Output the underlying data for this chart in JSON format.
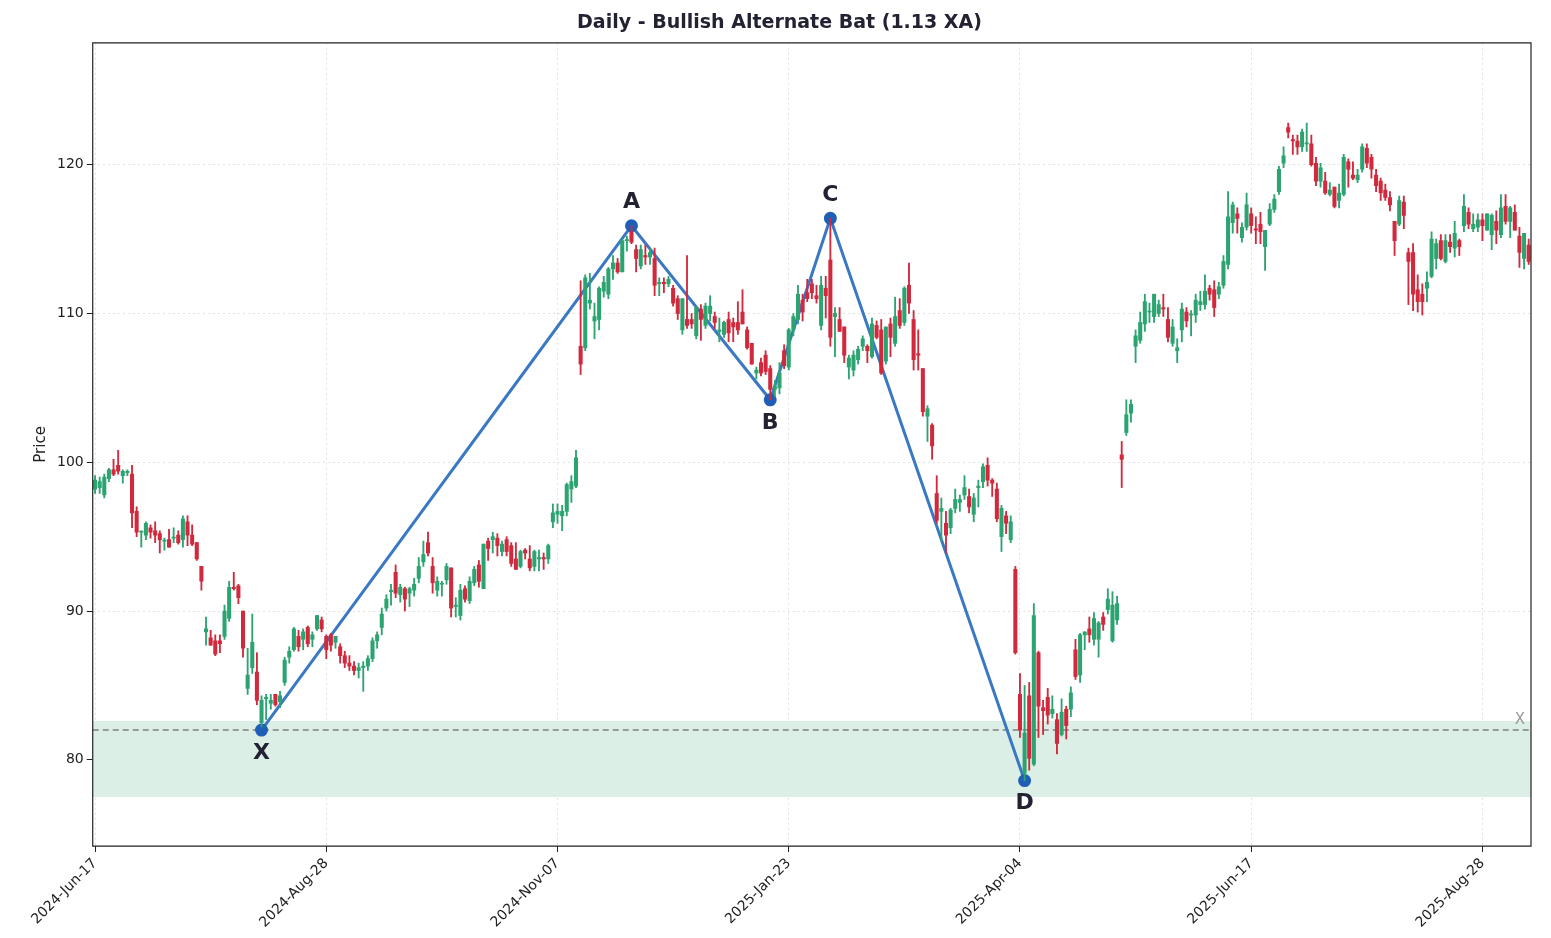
{
  "chart_data": {
    "type": "candlestick",
    "title": "Daily - Bullish Alternate Bat (1.13 XA)",
    "ylabel": "Price",
    "ylim": [
      74.2,
      128.2
    ],
    "yticks": [
      80,
      90,
      100,
      110,
      120
    ],
    "grid": true,
    "legend": false,
    "marker": "circle",
    "line_style": "solid",
    "categories": [
      "2024-Jun-17",
      null,
      null,
      null,
      null,
      null,
      null,
      null,
      null,
      null,
      null,
      null,
      null,
      null,
      null,
      null,
      null,
      null,
      null,
      null,
      null,
      null,
      null,
      null,
      null,
      null,
      null,
      null,
      null,
      null,
      null,
      null,
      null,
      null,
      null,
      null,
      null,
      null,
      null,
      null,
      null,
      null,
      null,
      null,
      null,
      null,
      null,
      null,
      null,
      null,
      "2024-Aug-28",
      null,
      null,
      null,
      null,
      null,
      null,
      null,
      null,
      null,
      null,
      null,
      null,
      null,
      null,
      null,
      null,
      null,
      null,
      null,
      null,
      null,
      null,
      null,
      null,
      null,
      null,
      null,
      null,
      null,
      null,
      null,
      null,
      null,
      null,
      null,
      null,
      null,
      null,
      null,
      null,
      null,
      null,
      null,
      null,
      null,
      null,
      null,
      null,
      null,
      "2024-Nov-07",
      null,
      null,
      null,
      null,
      null,
      null,
      null,
      null,
      null,
      null,
      null,
      null,
      null,
      null,
      null,
      null,
      null,
      null,
      null,
      null,
      null,
      null,
      null,
      null,
      null,
      null,
      null,
      null,
      null,
      null,
      null,
      null,
      null,
      null,
      null,
      null,
      null,
      null,
      null,
      null,
      null,
      null,
      null,
      null,
      null,
      null,
      null,
      null,
      null,
      "2025-Jan-23",
      null,
      null,
      null,
      null,
      null,
      null,
      null,
      null,
      null,
      null,
      null,
      null,
      null,
      null,
      null,
      null,
      null,
      null,
      null,
      null,
      null,
      null,
      null,
      null,
      null,
      null,
      null,
      null,
      null,
      null,
      null,
      null,
      null,
      null,
      null,
      null,
      null,
      null,
      null,
      null,
      null,
      null,
      null,
      null,
      null,
      null,
      null,
      null,
      null,
      "2025-Apr-04",
      null,
      null,
      null,
      null,
      null,
      null,
      null,
      null,
      null,
      null,
      null,
      null,
      null,
      null,
      null,
      null,
      null,
      null,
      null,
      null,
      null,
      null,
      null,
      null,
      null,
      null,
      null,
      null,
      null,
      null,
      null,
      null,
      null,
      null,
      null,
      null,
      null,
      null,
      null,
      null,
      null,
      null,
      null,
      null,
      null,
      null,
      null,
      null,
      null,
      "2025-Jun-17",
      null,
      null,
      null,
      null,
      null,
      null,
      null,
      null,
      null,
      null,
      null,
      null,
      null,
      null,
      null,
      null,
      null,
      null,
      null,
      null,
      null,
      null,
      null,
      null,
      null,
      null,
      null,
      null,
      null,
      null,
      null,
      null,
      null,
      null,
      null,
      null,
      null,
      null,
      null,
      null,
      null,
      null,
      null,
      null,
      null,
      null,
      null,
      null,
      null,
      "2025-Aug-28",
      null,
      null,
      null,
      null,
      null,
      null,
      null,
      null,
      null,
      null
    ],
    "ohlc": [
      [
        98.2,
        99.1,
        97.9,
        98.8
      ],
      [
        98.3,
        99,
        97.9,
        98.7
      ],
      [
        97.8,
        99.2,
        97.6,
        99
      ],
      [
        98.9,
        99.6,
        98.7,
        99.5
      ],
      [
        99.5,
        100.2,
        99.1,
        99.2
      ],
      [
        99.8,
        100.8,
        99.2,
        99.4
      ],
      [
        99.1,
        99.5,
        98.6,
        99.4
      ],
      [
        99.3,
        99.5,
        99.1,
        99.4
      ],
      [
        99.2,
        99.8,
        95.6,
        96.6
      ],
      [
        96.7,
        97,
        95,
        95.3
      ],
      [
        95.3,
        95.4,
        94.3,
        95.3
      ],
      [
        95.1,
        96,
        94.8,
        95.9
      ],
      [
        95.6,
        95.8,
        94.9,
        95.3
      ],
      [
        95.4,
        96,
        94.6,
        95.1
      ],
      [
        95.2,
        95.4,
        93.9,
        94.8
      ],
      [
        94.7,
        94.9,
        94.1,
        94.7
      ],
      [
        94.8,
        95.5,
        94.3,
        94.3
      ],
      [
        94.9,
        95.6,
        94.6,
        94.9
      ],
      [
        95.1,
        95.4,
        94.5,
        94.6
      ],
      [
        94.8,
        96.4,
        94.3,
        96.2
      ],
      [
        96,
        96.4,
        94.4,
        95.1
      ],
      [
        95.1,
        95.8,
        94.4,
        94.5
      ],
      [
        94.6,
        94.6,
        93.4,
        93.5
      ],
      [
        93,
        93,
        91.4,
        92
      ],
      [
        88.6,
        89.6,
        87.7,
        88.8
      ],
      [
        88.2,
        88.7,
        87.7,
        87.7
      ],
      [
        88,
        88.4,
        87,
        87.1
      ],
      [
        88,
        88.4,
        87.2,
        87.8
      ],
      [
        88.3,
        90.4,
        88.1,
        90
      ],
      [
        89.5,
        92,
        89.3,
        91.6
      ],
      [
        91.6,
        92.6,
        91.4,
        91.5
      ],
      [
        91.7,
        91.8,
        90.5,
        90.9
      ],
      [
        90,
        90,
        86.9,
        87.5
      ],
      [
        84.8,
        87.5,
        84.4,
        85.7
      ],
      [
        86.2,
        89.8,
        85.8,
        87.9
      ],
      [
        85.9,
        87.2,
        83.7,
        84
      ],
      [
        82.5,
        84.3,
        82.2,
        84
      ],
      [
        84.1,
        84.4,
        82.7,
        84.2
      ],
      [
        83.8,
        84.4,
        83.4,
        84
      ],
      [
        84.4,
        84.4,
        83.6,
        83.7
      ],
      [
        83.9,
        84.6,
        83.5,
        84.3
      ],
      [
        85.2,
        86.9,
        85,
        86.7
      ],
      [
        86.9,
        87.6,
        86.5,
        87.3
      ],
      [
        87.4,
        88.9,
        87.3,
        88.8
      ],
      [
        88.3,
        88.7,
        87.3,
        87.6
      ],
      [
        88.1,
        88.8,
        87.4,
        88.6
      ],
      [
        88.9,
        89,
        87.6,
        87.8
      ],
      [
        88.1,
        88.6,
        87.6,
        88.4
      ],
      [
        88.8,
        89.7,
        88.7,
        89.7
      ],
      [
        89.4,
        89.6,
        88.6,
        88.8
      ],
      [
        88.3,
        88.4,
        86.8,
        87.4
      ],
      [
        88.4,
        88.5,
        87.3,
        87.7
      ],
      [
        87.9,
        88.3,
        87.5,
        88.3
      ],
      [
        87.6,
        87.8,
        86.5,
        87
      ],
      [
        87,
        87.3,
        86.2,
        86.5
      ],
      [
        86.5,
        87,
        86,
        86.3
      ],
      [
        86.3,
        86.6,
        85.7,
        86
      ],
      [
        86,
        86.5,
        85.5,
        86.2
      ],
      [
        86.2,
        86.6,
        84.6,
        86.3
      ],
      [
        86.3,
        87,
        86,
        86.8
      ],
      [
        86.8,
        88.2,
        86.6,
        88
      ],
      [
        88,
        88.6,
        87.5,
        88.4
      ],
      [
        88.9,
        90.2,
        88.4,
        89.8
      ],
      [
        90.2,
        91.1,
        90,
        90.8
      ],
      [
        91.3,
        91.8,
        90.4,
        91.4
      ],
      [
        92.6,
        93.1,
        90.9,
        91.2
      ],
      [
        91.1,
        91.8,
        90.6,
        91.6
      ],
      [
        91.5,
        91.6,
        90,
        90.8
      ],
      [
        91.2,
        91.6,
        90.3,
        91.5
      ],
      [
        91.4,
        92.2,
        91,
        91.8
      ],
      [
        92.2,
        93.6,
        91.9,
        93
      ],
      [
        93.3,
        94.7,
        93,
        93.8
      ],
      [
        94.6,
        95.3,
        93.7,
        93.9
      ],
      [
        93,
        93.6,
        91.2,
        91.9
      ],
      [
        91.4,
        92.3,
        91,
        92
      ],
      [
        91.8,
        92,
        91,
        91.8
      ],
      [
        92.1,
        93.2,
        91.8,
        93
      ],
      [
        92.9,
        92.9,
        89.6,
        90.2
      ],
      [
        90.3,
        90.9,
        89.6,
        90.4
      ],
      [
        89.7,
        91.8,
        89.4,
        91.4
      ],
      [
        91.5,
        91.7,
        90.6,
        90.8
      ],
      [
        90.7,
        92.3,
        90.5,
        92
      ],
      [
        91.9,
        93,
        91.7,
        92.8
      ],
      [
        93.1,
        93.4,
        91.6,
        92
      ],
      [
        91.5,
        94.5,
        91.5,
        94.5
      ],
      [
        94.7,
        94.9,
        93.4,
        94.2
      ],
      [
        94.8,
        95.3,
        93.9,
        95
      ],
      [
        94.9,
        95.2,
        93.7,
        94.4
      ],
      [
        94,
        94.7,
        93.7,
        94.5
      ],
      [
        94.8,
        95,
        93.7,
        94
      ],
      [
        94.4,
        94.6,
        93,
        93.2
      ],
      [
        93.5,
        94.6,
        92.8,
        92.8
      ],
      [
        93,
        94.1,
        92.9,
        94
      ],
      [
        94.1,
        94.2,
        93.5,
        93.9
      ],
      [
        93.5,
        94.4,
        92.7,
        92.9
      ],
      [
        93,
        94.1,
        92.7,
        94
      ],
      [
        93.5,
        94.1,
        92.7,
        93.6
      ],
      [
        93.6,
        93.9,
        92.8,
        93.5
      ],
      [
        93.5,
        94.5,
        93.2,
        94.4
      ],
      [
        96,
        97.2,
        95.6,
        96.6
      ],
      [
        96.5,
        97.2,
        95.9,
        96.7
      ],
      [
        96.4,
        97.1,
        95.4,
        96.7
      ],
      [
        96.7,
        98.6,
        96.4,
        98.5
      ],
      [
        98.2,
        99.1,
        97.3,
        98.7
      ],
      [
        98.4,
        100.8,
        98.3,
        100.3
      ],
      [
        107.8,
        112.2,
        105.9,
        106.6
      ],
      [
        107.7,
        112.6,
        107.5,
        112.4
      ],
      [
        110.7,
        112.7,
        110.3,
        110.9
      ],
      [
        109.5,
        110.7,
        108.3,
        109.8
      ],
      [
        109.6,
        111.8,
        108.9,
        111.7
      ],
      [
        111.5,
        112.5,
        111.1,
        112.1
      ],
      [
        111.3,
        113.1,
        111,
        113
      ],
      [
        113,
        113.9,
        112.3,
        113.4
      ],
      [
        113.4,
        113.7,
        112.7,
        112.8
      ],
      [
        112.8,
        115,
        112.8,
        114.9
      ],
      [
        114.9,
        115.2,
        114.2,
        114.9
      ],
      [
        115.5,
        115.9,
        114.7,
        114.8
      ],
      [
        114.3,
        114.6,
        112.8,
        113.7
      ],
      [
        113.2,
        114.6,
        113,
        114.3
      ],
      [
        113.9,
        114.6,
        113.3,
        113.8
      ],
      [
        113.8,
        114.4,
        113.3,
        114.1
      ],
      [
        113.7,
        114.4,
        111.2,
        111.9
      ],
      [
        112,
        112.4,
        111.2,
        112.1
      ],
      [
        112.1,
        112.4,
        111.4,
        112
      ],
      [
        112,
        112.5,
        111.8,
        112.3
      ],
      [
        111.7,
        111.9,
        110.5,
        110.7
      ],
      [
        111,
        111.2,
        109.6,
        110
      ],
      [
        108.9,
        111,
        108.6,
        111
      ],
      [
        109.6,
        113.9,
        109,
        109.2
      ],
      [
        109.6,
        110,
        109,
        109.3
      ],
      [
        108.5,
        110.5,
        108.3,
        110.4
      ],
      [
        110.3,
        110.6,
        108.2,
        109.6
      ],
      [
        109.2,
        110.7,
        109,
        110.5
      ],
      [
        110,
        111.2,
        109.5,
        110.5
      ],
      [
        109.8,
        110.1,
        109,
        109.4
      ],
      [
        108.8,
        109.7,
        108.1,
        108.9
      ],
      [
        108.6,
        109.5,
        108.4,
        109.4
      ],
      [
        109.6,
        110.1,
        108.1,
        108.7
      ],
      [
        109.4,
        109.7,
        108.1,
        109.1
      ],
      [
        109.4,
        110.8,
        108.6,
        108.9
      ],
      [
        110.1,
        111.6,
        109.3,
        109.3
      ],
      [
        108.9,
        109.1,
        107.6,
        107.7
      ],
      [
        108,
        108,
        106.6,
        106.6
      ],
      [
        106,
        106.4,
        105.6,
        106.2
      ],
      [
        106.7,
        107,
        105.8,
        106
      ],
      [
        107.2,
        107.5,
        105.9,
        106.1
      ],
      [
        106.3,
        106.5,
        104.2,
        104.9
      ],
      [
        104.9,
        105.5,
        104.4,
        105.1
      ],
      [
        105,
        106.7,
        104.6,
        106
      ],
      [
        107.5,
        107.9,
        106.3,
        106.5
      ],
      [
        106.4,
        109,
        106.2,
        108.9
      ],
      [
        108.9,
        110,
        108.5,
        109.8
      ],
      [
        109.6,
        111.9,
        109.3,
        111.3
      ],
      [
        110.9,
        111.3,
        109.5,
        110.1
      ],
      [
        111.4,
        112.3,
        110.8,
        111
      ],
      [
        112,
        112.3,
        111,
        111.4
      ],
      [
        111.2,
        111.9,
        110.7,
        111
      ],
      [
        109.2,
        112.5,
        108.9,
        111.9
      ],
      [
        111.7,
        112.5,
        109.7,
        111.2
      ],
      [
        113.6,
        116.4,
        107.8,
        108.4
      ],
      [
        109.8,
        110.4,
        107.1,
        110
      ],
      [
        109.6,
        110.4,
        108.8,
        108.8
      ],
      [
        109.1,
        109.1,
        106.7,
        107.2
      ],
      [
        106.4,
        107.2,
        105.6,
        107
      ],
      [
        106.2,
        107.5,
        105.8,
        107.2
      ],
      [
        106.9,
        107.8,
        106.6,
        107.6
      ],
      [
        107.8,
        108.5,
        107.5,
        108.3
      ],
      [
        107.8,
        107.9,
        106.7,
        107.5
      ],
      [
        107.1,
        109.7,
        107,
        109.3
      ],
      [
        109.2,
        109.5,
        108.3,
        108.4
      ],
      [
        108.9,
        109.6,
        105.9,
        106
      ],
      [
        106.8,
        109.1,
        106.6,
        109.1
      ],
      [
        109.3,
        109.7,
        107.1,
        108.4
      ],
      [
        108,
        111.1,
        107.8,
        109.8
      ],
      [
        110.2,
        111,
        109,
        109.2
      ],
      [
        109.4,
        111.8,
        109.2,
        111.7
      ],
      [
        111.9,
        113.4,
        110,
        110.7
      ],
      [
        109.6,
        110.2,
        106.2,
        106.9
      ],
      [
        107.3,
        108.9,
        106.2,
        107.2
      ],
      [
        106.3,
        106.3,
        103.1,
        103.4
      ],
      [
        103.1,
        103.8,
        101.4,
        103.6
      ],
      [
        102.5,
        102.6,
        100.2,
        101.1
      ],
      [
        97.9,
        99.1,
        95.9,
        96.1
      ],
      [
        96.7,
        97.6,
        94.7,
        96.9
      ],
      [
        95.9,
        96.7,
        93.9,
        95.1
      ],
      [
        95.6,
        96.9,
        95.2,
        96.8
      ],
      [
        96.9,
        98.2,
        96.6,
        97.5
      ],
      [
        97.3,
        97.8,
        96.7,
        97.5
      ],
      [
        97.8,
        99.1,
        97.5,
        98.3
      ],
      [
        97.7,
        98.2,
        96.6,
        97
      ],
      [
        96.5,
        97.9,
        96,
        97.6
      ],
      [
        98.3,
        98.8,
        97,
        98.4
      ],
      [
        98.7,
        99.9,
        98.3,
        99.7
      ],
      [
        99.8,
        100.3,
        98.4,
        98.8
      ],
      [
        98.8,
        98.9,
        97.7,
        98.6
      ],
      [
        98.2,
        98.6,
        96,
        96.2
      ],
      [
        95,
        97.1,
        94,
        96.9
      ],
      [
        96.4,
        96.7,
        95.2,
        95.9
      ],
      [
        94.8,
        96.4,
        94.6,
        96
      ],
      [
        92.8,
        93,
        87.1,
        87.2
      ],
      [
        84.4,
        85.8,
        81.5,
        82
      ],
      [
        79.1,
        85,
        78.6,
        81.8
      ],
      [
        84.3,
        85.2,
        79.3,
        80.1
      ],
      [
        79.7,
        90.5,
        79.6,
        89.7
      ],
      [
        87.2,
        87.3,
        81.5,
        83.6
      ],
      [
        83.5,
        84,
        81.7,
        83.3
      ],
      [
        84.2,
        84.8,
        82.4,
        83
      ],
      [
        83.1,
        84.3,
        82.8,
        83.4
      ],
      [
        82.7,
        83.1,
        80.4,
        81.1
      ],
      [
        81.7,
        84.1,
        81.6,
        83.2
      ],
      [
        83.4,
        83.6,
        81.4,
        82.3
      ],
      [
        83.4,
        84.9,
        82.9,
        84.5
      ],
      [
        87.4,
        88.1,
        85.4,
        85.6
      ],
      [
        85.7,
        88.5,
        85.2,
        88.4
      ],
      [
        88.4,
        88.6,
        87.4,
        88.6
      ],
      [
        88.8,
        89.6,
        87.9,
        88.4
      ],
      [
        88.1,
        89.9,
        87.7,
        89.5
      ],
      [
        88.1,
        89.3,
        86.9,
        89.2
      ],
      [
        89.6,
        89.9,
        88.7,
        89.1
      ],
      [
        90.1,
        91.5,
        89.8,
        90.8
      ],
      [
        88,
        91.3,
        87.9,
        90.4
      ],
      [
        89.4,
        91,
        89.1,
        90.5
      ],
      [
        100.5,
        101.4,
        98.3,
        100.2
      ],
      [
        102,
        104.2,
        101.8,
        103.2
      ],
      [
        103.3,
        104.2,
        102.7,
        103.9
      ],
      [
        107.8,
        108.9,
        106.7,
        108.5
      ],
      [
        108.2,
        110.1,
        108,
        109.4
      ],
      [
        109.3,
        111.3,
        108.8,
        110.8
      ],
      [
        110.1,
        110.7,
        109.4,
        110.1
      ],
      [
        109.8,
        111.3,
        109.4,
        111.3
      ],
      [
        110,
        110.9,
        109.8,
        110.6
      ],
      [
        110.4,
        111.3,
        109.8,
        110.3
      ],
      [
        109.6,
        110.4,
        108.1,
        108.4
      ],
      [
        108,
        109.6,
        107.8,
        109.1
      ],
      [
        107.5,
        108.3,
        106.7,
        107.7
      ],
      [
        108.9,
        110.7,
        108.1,
        110.3
      ],
      [
        110.1,
        110.4,
        109.1,
        109.5
      ],
      [
        109.9,
        110.2,
        108.5,
        109.9
      ],
      [
        109.9,
        111.3,
        109.4,
        110.9
      ],
      [
        110.6,
        111.5,
        110.2,
        110.8
      ],
      [
        110.6,
        112.6,
        110.3,
        111.5
      ],
      [
        111.7,
        111.9,
        110.9,
        111.3
      ],
      [
        111.6,
        112.2,
        109.8,
        110.4
      ],
      [
        111.3,
        112.1,
        111,
        111.8
      ],
      [
        111.9,
        113.9,
        111.7,
        113.5
      ],
      [
        113.3,
        118.2,
        113,
        116.5
      ],
      [
        116.1,
        117.5,
        115.4,
        117.3
      ],
      [
        116.7,
        117.1,
        115.4,
        116.4
      ],
      [
        115.1,
        116.1,
        114.8,
        115.8
      ],
      [
        115.8,
        118.1,
        115.6,
        117.3
      ],
      [
        116.7,
        117.1,
        115.4,
        115.9
      ],
      [
        115.7,
        116.5,
        114.7,
        115.6
      ],
      [
        116,
        116.8,
        114.7,
        115.5
      ],
      [
        114.5,
        115.6,
        112.9,
        115.6
      ],
      [
        116,
        117.4,
        115.9,
        117
      ],
      [
        117,
        118,
        116.8,
        117.7
      ],
      [
        118.2,
        119.9,
        118,
        119.7
      ],
      [
        120.1,
        121.2,
        119.8,
        120.6
      ],
      [
        122.5,
        122.8,
        121.8,
        122.2
      ],
      [
        121.7,
        122,
        120.7,
        121.6
      ],
      [
        121.6,
        122,
        120.7,
        121.2
      ],
      [
        121.2,
        122.4,
        120.9,
        122.2
      ],
      [
        121.4,
        122.8,
        120.9,
        121.4
      ],
      [
        121.4,
        122,
        119.9,
        120
      ],
      [
        120.1,
        120.5,
        118.6,
        118.9
      ],
      [
        118.9,
        120.1,
        118.5,
        119.8
      ],
      [
        118.9,
        119.5,
        118,
        118.1
      ],
      [
        118,
        118.8,
        117.9,
        118.3
      ],
      [
        118.5,
        118.5,
        117.1,
        117.2
      ],
      [
        117.6,
        118.7,
        117.1,
        118.1
      ],
      [
        118,
        120.7,
        117.9,
        120.5
      ],
      [
        120.2,
        120.4,
        118.5,
        119.7
      ],
      [
        119.3,
        120.2,
        119,
        119.1
      ],
      [
        119,
        119.7,
        118.8,
        119.3
      ],
      [
        119.7,
        121.4,
        119.5,
        121.2
      ],
      [
        121.1,
        121.4,
        119.8,
        120.1
      ],
      [
        120.5,
        120.7,
        119.1,
        119.7
      ],
      [
        119.3,
        119.7,
        118.2,
        118.6
      ],
      [
        118.9,
        119.1,
        117.6,
        118.1
      ],
      [
        118.3,
        118.7,
        117.6,
        117.8
      ],
      [
        117.8,
        118.2,
        116.9,
        117.3
      ],
      [
        116.2,
        116.2,
        113.9,
        114.9
      ],
      [
        116,
        117.9,
        115.9,
        117.6
      ],
      [
        117.5,
        117.9,
        115.7,
        116.6
      ],
      [
        114.1,
        114.4,
        110.6,
        113.5
      ],
      [
        114.1,
        114.7,
        110.2,
        111.3
      ],
      [
        111.6,
        112.6,
        110.1,
        110.8
      ],
      [
        111.3,
        112,
        109.9,
        110.8
      ],
      [
        111.7,
        112.8,
        110.8,
        112.1
      ],
      [
        112.5,
        115.5,
        112.4,
        115
      ],
      [
        113.7,
        115,
        113,
        114.7
      ],
      [
        114.9,
        115.3,
        113.6,
        113.7
      ],
      [
        113.5,
        115.3,
        113.4,
        114.9
      ],
      [
        114.8,
        115.3,
        114.1,
        114.5
      ],
      [
        114.4,
        116.2,
        113.8,
        115.4
      ],
      [
        114.9,
        115,
        113.9,
        114.5
      ],
      [
        115.9,
        118,
        115.5,
        117.2
      ],
      [
        116.8,
        117.1,
        115.7,
        116
      ],
      [
        115.7,
        116.7,
        115.5,
        116
      ],
      [
        115.8,
        116.7,
        115.5,
        116.3
      ],
      [
        116.3,
        116.7,
        114.9,
        115.9
      ],
      [
        115.6,
        116.7,
        115.6,
        116.7
      ],
      [
        115.3,
        116.7,
        114.3,
        116.6
      ],
      [
        116.2,
        116.9,
        114.7,
        115.6
      ],
      [
        115.3,
        118,
        115.1,
        117.1
      ],
      [
        117.2,
        118,
        116,
        116.2
      ],
      [
        116.2,
        117.2,
        115.1,
        117.1
      ],
      [
        116.8,
        117.3,
        115.6,
        115.6
      ],
      [
        115.2,
        115.8,
        113.1,
        114.1
      ],
      [
        113.7,
        115.4,
        113,
        115.4
      ],
      [
        114.6,
        115,
        113.3,
        113.5
      ]
    ],
    "series": [
      {
        "type": "line",
        "color": "#3a78c3",
        "values": [
          null,
          null,
          null,
          null,
          null,
          null,
          null,
          null,
          null,
          null,
          null,
          null,
          null,
          null,
          null,
          null,
          null,
          null,
          null,
          null,
          null,
          null,
          null,
          null,
          null,
          null,
          null,
          null,
          null,
          null,
          null,
          null,
          null,
          null,
          null,
          null,
          82.0,
          null,
          null,
          null,
          null,
          null,
          null,
          null,
          null,
          null,
          null,
          null,
          null,
          null,
          null,
          null,
          null,
          null,
          null,
          null,
          null,
          null,
          null,
          null,
          null,
          null,
          null,
          null,
          null,
          null,
          null,
          null,
          null,
          null,
          null,
          null,
          null,
          null,
          null,
          null,
          null,
          null,
          null,
          null,
          null,
          null,
          null,
          null,
          null,
          null,
          null,
          null,
          null,
          null,
          null,
          null,
          null,
          null,
          null,
          null,
          null,
          null,
          null,
          null,
          null,
          null,
          null,
          null,
          null,
          null,
          null,
          null,
          null,
          null,
          null,
          null,
          null,
          null,
          null,
          null,
          115.9,
          null,
          null,
          null,
          null,
          null,
          null,
          null,
          null,
          null,
          null,
          null,
          null,
          null,
          null,
          null,
          null,
          null,
          null,
          null,
          null,
          null,
          null,
          null,
          null,
          null,
          null,
          null,
          null,
          null,
          104.2,
          null,
          null,
          null,
          null,
          null,
          null,
          null,
          null,
          null,
          null,
          null,
          null,
          116.4,
          null,
          null,
          null,
          null,
          null,
          null,
          null,
          null,
          null,
          null,
          null,
          null,
          null,
          null,
          null,
          null,
          null,
          null,
          null,
          null,
          null,
          null,
          null,
          null,
          null,
          null,
          null,
          null,
          null,
          null,
          null,
          null,
          null,
          null,
          null,
          null,
          null,
          null,
          null,
          null,
          null,
          78.6,
          null,
          null,
          null,
          null,
          null,
          null,
          null,
          null,
          null,
          null,
          null,
          null,
          null,
          null,
          null,
          null,
          null,
          null,
          null,
          null,
          null,
          null,
          null,
          null,
          null,
          null,
          null,
          null,
          null,
          null,
          null,
          null,
          null,
          null,
          null,
          null,
          null,
          null,
          null,
          null,
          null,
          null,
          null,
          null,
          null,
          null,
          null,
          null,
          null,
          null,
          null,
          null,
          null,
          null,
          null,
          null,
          null,
          null,
          null,
          null,
          null,
          null,
          null,
          null,
          null,
          null,
          null,
          null,
          null,
          null,
          null,
          null,
          null,
          null,
          null,
          null,
          null,
          null,
          null,
          null,
          null,
          null,
          null,
          null,
          null,
          null,
          null,
          null,
          null,
          null,
          null,
          null,
          null,
          null,
          null,
          null,
          null,
          null,
          null,
          null,
          null,
          null,
          null,
          null,
          null,
          null,
          null,
          null,
          null
        ]
      }
    ],
    "annotations": [
      "X",
      "A",
      "B",
      "C",
      "D"
    ],
    "ref_lines": [
      {
        "axis": "y",
        "value": 82.0,
        "label": "X",
        "color": "#999999",
        "line_style": "dashed"
      }
    ],
    "bands": [
      {
        "axis": "y",
        "from": 77.5,
        "to": 82.6,
        "color": "#dcefe6"
      }
    ]
  }
}
